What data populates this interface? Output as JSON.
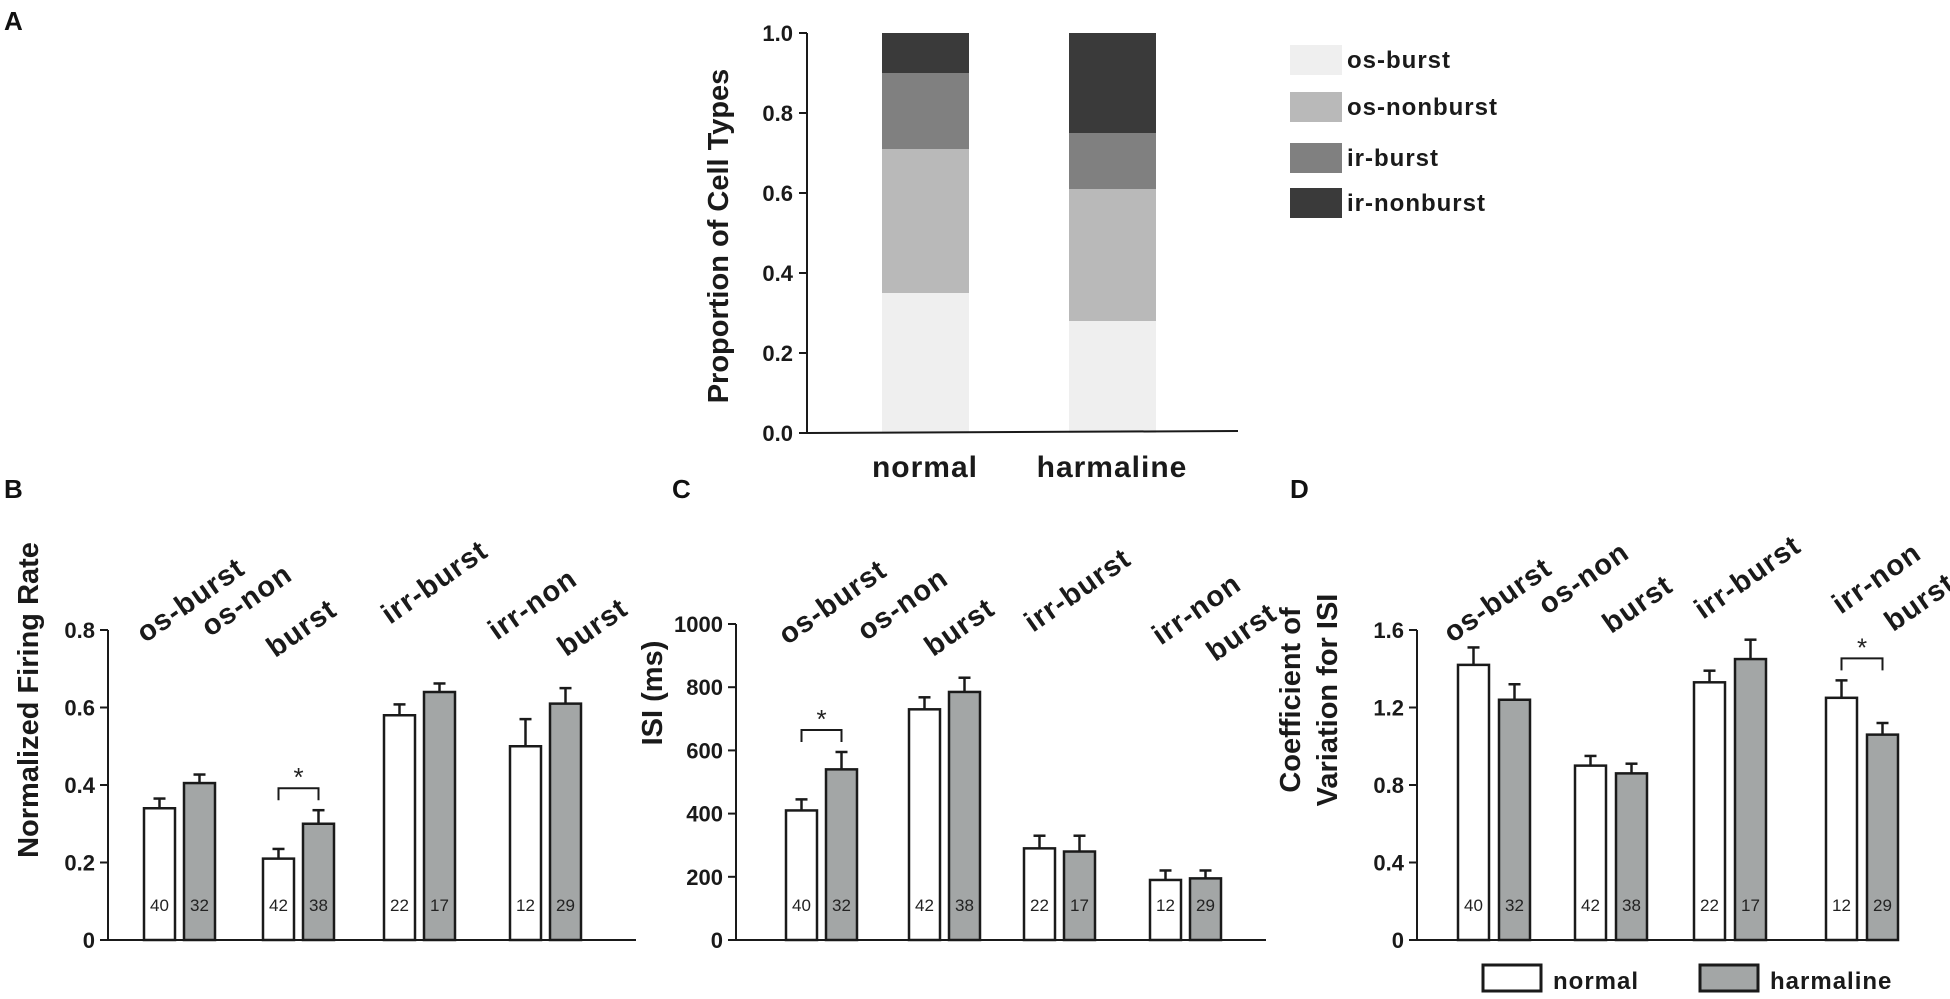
{
  "colors": {
    "os_burst": "#efefef",
    "os_nonburst": "#b9b9b9",
    "ir_burst": "#808080",
    "ir_nonburst": "#3a3a3a",
    "normal": "#ffffff",
    "harmaline": "#a3a6a6",
    "ink": "#1a1a1a"
  },
  "legend": {
    "normal": "normal",
    "harmaline": "harmaline"
  },
  "chart_data": [
    {
      "panel": "A",
      "type": "bar",
      "stacked": true,
      "ylabel": "Proportion of Cell Types",
      "ylim": [
        0,
        1.0
      ],
      "yticks": [
        "0.0",
        "0.2",
        "0.4",
        "0.6",
        "0.8",
        "1.0"
      ],
      "categories": [
        "normal",
        "harmaline"
      ],
      "series": [
        {
          "name": "os-burst",
          "key": "os_burst",
          "values": [
            0.35,
            0.28
          ]
        },
        {
          "name": "os-nonburst",
          "key": "os_nonburst",
          "values": [
            0.36,
            0.33
          ]
        },
        {
          "name": "ir-burst",
          "key": "ir_burst",
          "values": [
            0.19,
            0.14
          ]
        },
        {
          "name": "ir-nonburst",
          "key": "ir_nonburst",
          "values": [
            0.1,
            0.25
          ]
        }
      ],
      "legend_order": [
        "os-burst",
        "os-nonburst",
        "ir-burst",
        "ir-nonburst"
      ]
    },
    {
      "panel": "B",
      "type": "bar",
      "ylabel": "Normalized Firing Rate",
      "ylim": [
        0,
        0.8
      ],
      "yticks": [
        "0",
        "0.2",
        "0.4",
        "0.6",
        "0.8"
      ],
      "groups": [
        {
          "label": [
            "os-burst"
          ],
          "normal": {
            "value": 0.34,
            "err": 0.025,
            "n": "40"
          },
          "harmaline": {
            "value": 0.405,
            "err": 0.022,
            "n": "32"
          },
          "sig": ""
        },
        {
          "label": [
            "os-non",
            "burst"
          ],
          "normal": {
            "value": 0.21,
            "err": 0.025,
            "n": "42"
          },
          "harmaline": {
            "value": 0.3,
            "err": 0.035,
            "n": "38"
          },
          "sig": "*"
        },
        {
          "label": [
            "irr-burst"
          ],
          "normal": {
            "value": 0.58,
            "err": 0.028,
            "n": "22"
          },
          "harmaline": {
            "value": 0.64,
            "err": 0.022,
            "n": "17"
          },
          "sig": ""
        },
        {
          "label": [
            "irr-non",
            "burst"
          ],
          "normal": {
            "value": 0.5,
            "err": 0.07,
            "n": "12"
          },
          "harmaline": {
            "value": 0.61,
            "err": 0.04,
            "n": "29"
          },
          "sig": ""
        }
      ]
    },
    {
      "panel": "C",
      "type": "bar",
      "ylabel": "ISI (ms)",
      "ylim": [
        0,
        1000
      ],
      "yticks": [
        "0",
        "200",
        "400",
        "600",
        "800",
        "1000"
      ],
      "groups": [
        {
          "label": [
            "os-burst"
          ],
          "normal": {
            "value": 410,
            "err": 35,
            "n": "40"
          },
          "harmaline": {
            "value": 540,
            "err": 55,
            "n": "32"
          },
          "sig": "*"
        },
        {
          "label": [
            "os-non",
            "burst"
          ],
          "normal": {
            "value": 730,
            "err": 38,
            "n": "42"
          },
          "harmaline": {
            "value": 785,
            "err": 45,
            "n": "38"
          },
          "sig": ""
        },
        {
          "label": [
            "irr-burst"
          ],
          "normal": {
            "value": 290,
            "err": 40,
            "n": "22"
          },
          "harmaline": {
            "value": 280,
            "err": 50,
            "n": "17"
          },
          "sig": ""
        },
        {
          "label": [
            "irr-non",
            "burst"
          ],
          "normal": {
            "value": 190,
            "err": 30,
            "n": "12"
          },
          "harmaline": {
            "value": 195,
            "err": 25,
            "n": "29"
          },
          "sig": ""
        }
      ]
    },
    {
      "panel": "D",
      "type": "bar",
      "ylabel": [
        "Coefficient of",
        "Variation for ISI"
      ],
      "ylim": [
        0,
        1.6
      ],
      "yticks": [
        "0",
        "0.4",
        "0.8",
        "1.2",
        "1.6"
      ],
      "groups": [
        {
          "label": [
            "os-burst"
          ],
          "normal": {
            "value": 1.42,
            "err": 0.09,
            "n": "40"
          },
          "harmaline": {
            "value": 1.24,
            "err": 0.08,
            "n": "32"
          },
          "sig": ""
        },
        {
          "label": [
            "os-non",
            "burst"
          ],
          "normal": {
            "value": 0.9,
            "err": 0.05,
            "n": "42"
          },
          "harmaline": {
            "value": 0.86,
            "err": 0.05,
            "n": "38"
          },
          "sig": ""
        },
        {
          "label": [
            "irr-burst"
          ],
          "normal": {
            "value": 1.33,
            "err": 0.06,
            "n": "22"
          },
          "harmaline": {
            "value": 1.45,
            "err": 0.1,
            "n": "17"
          },
          "sig": ""
        },
        {
          "label": [
            "irr-non",
            "burst"
          ],
          "normal": {
            "value": 1.25,
            "err": 0.09,
            "n": "12"
          },
          "harmaline": {
            "value": 1.06,
            "err": 0.06,
            "n": "29"
          },
          "sig": "*"
        }
      ]
    }
  ]
}
